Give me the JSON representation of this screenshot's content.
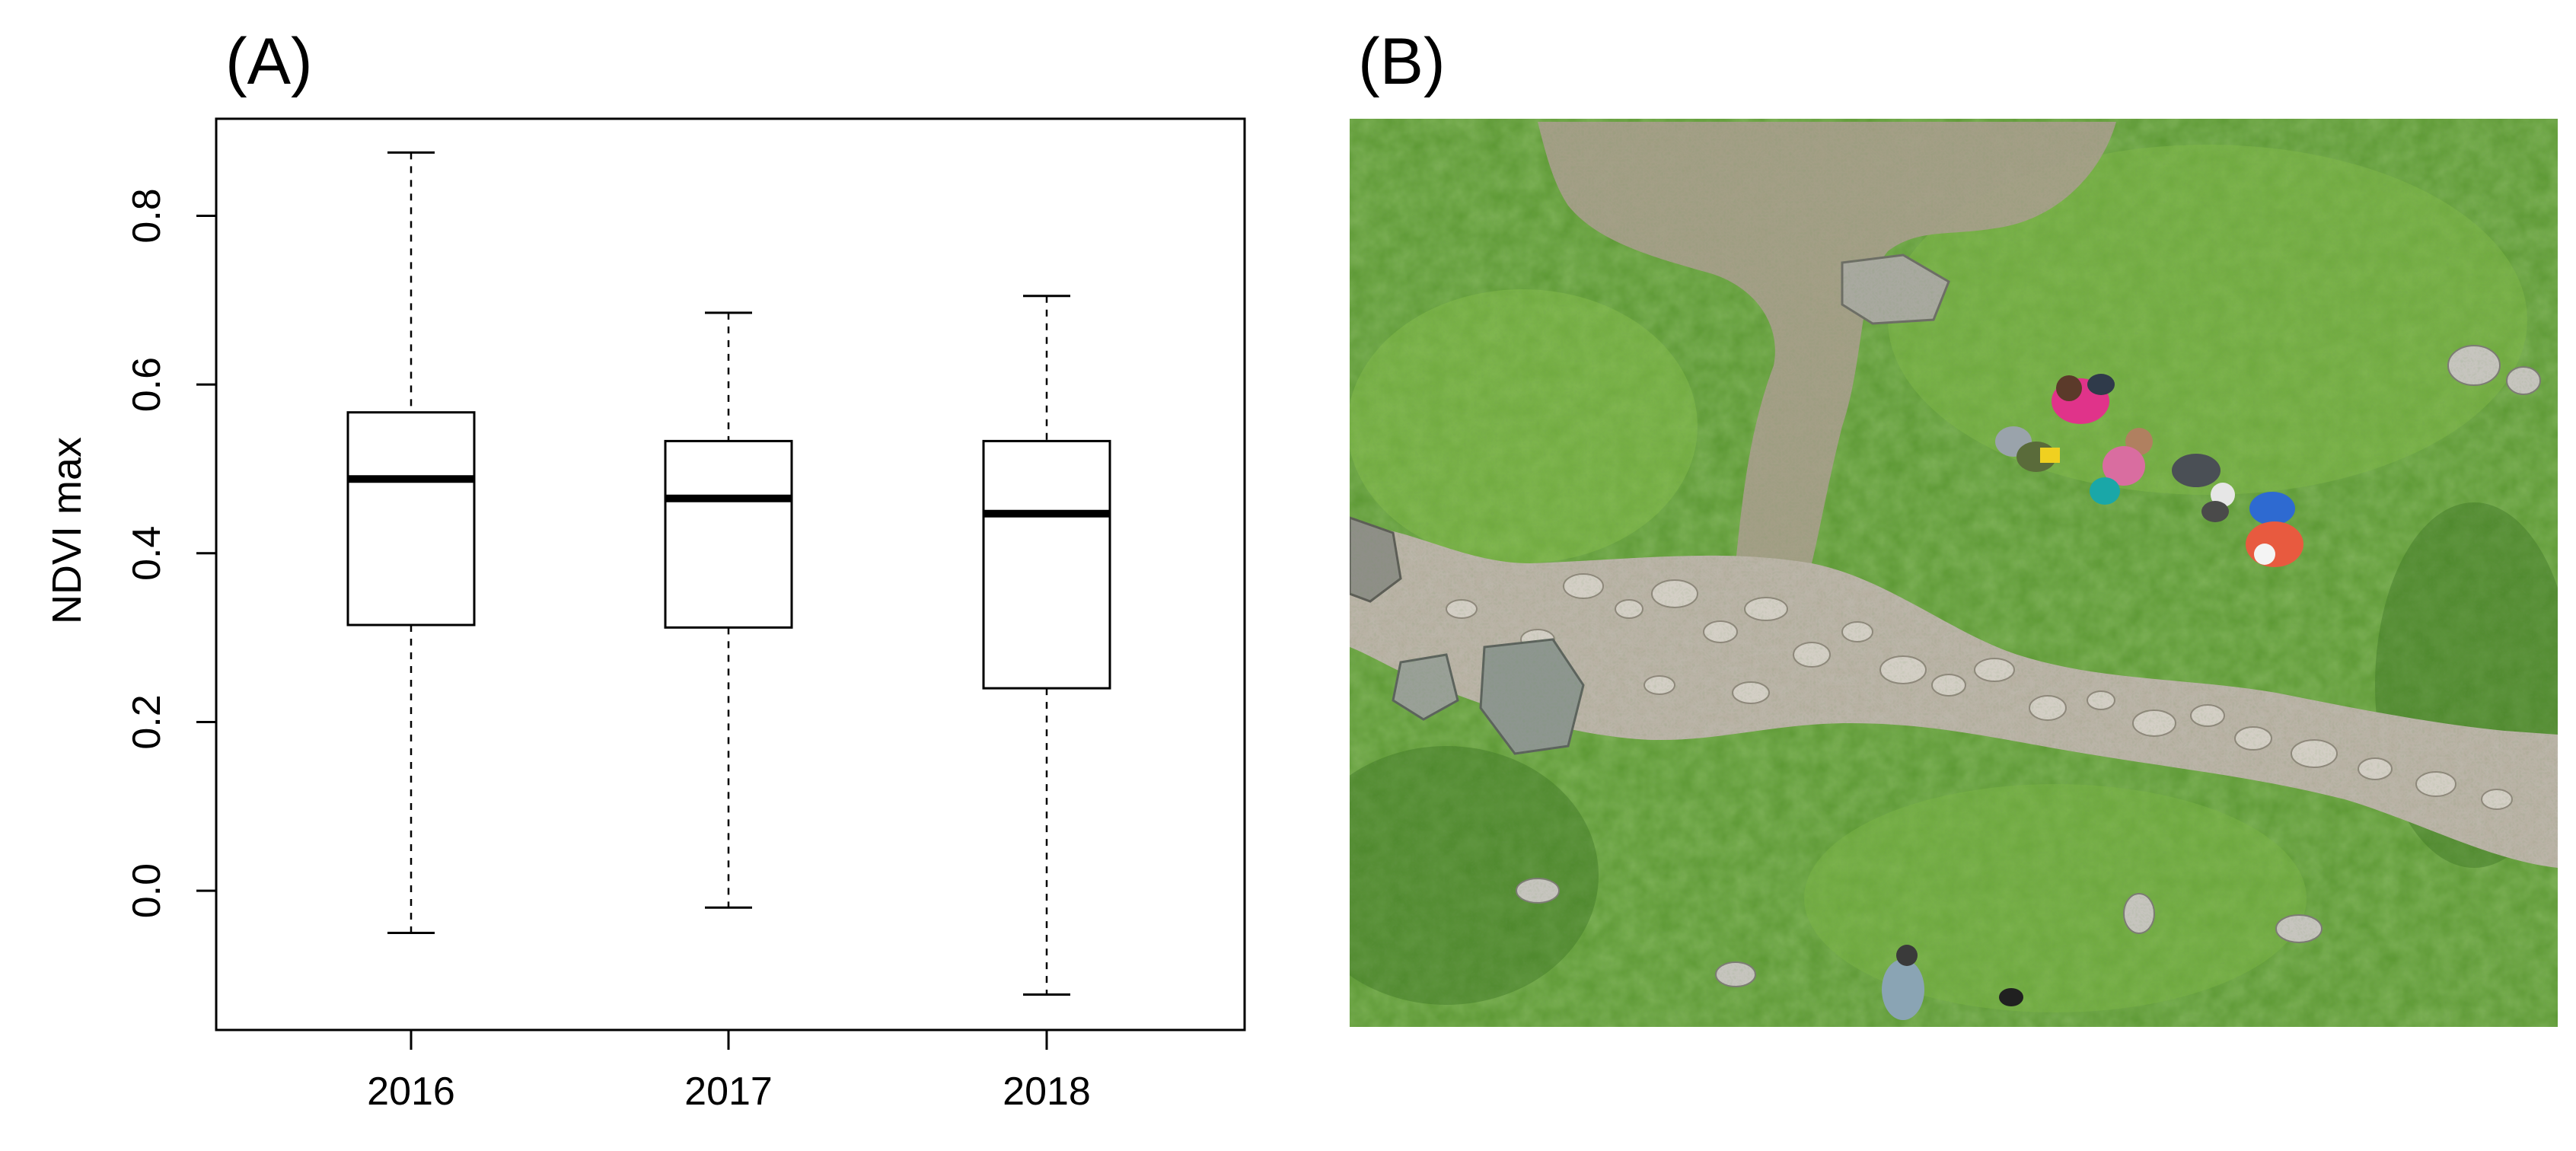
{
  "panels": {
    "a_label": "(A)",
    "b_label": "(B)"
  },
  "chart_data": {
    "type": "boxplot",
    "title": "",
    "xlabel": "",
    "ylabel": "NDVI max",
    "categories": [
      "2016",
      "2017",
      "2018"
    ],
    "boxes": [
      {
        "category": "2016",
        "min": -0.05,
        "q1": 0.315,
        "median": 0.488,
        "q3": 0.567,
        "max": 0.875
      },
      {
        "category": "2017",
        "min": -0.02,
        "q1": 0.312,
        "median": 0.465,
        "q3": 0.533,
        "max": 0.685
      },
      {
        "category": "2018",
        "min": -0.123,
        "q1": 0.24,
        "median": 0.447,
        "q3": 0.533,
        "max": 0.705
      }
    ],
    "ylim": [
      -0.165,
      0.915
    ],
    "yticks": [
      0.0,
      0.2,
      0.4,
      0.6,
      0.8
    ],
    "ytick_labels": [
      "0.0",
      "0.2",
      "0.4",
      "0.6",
      "0.8"
    ],
    "grid": false,
    "colors": {
      "box_fill": "#ffffff",
      "stroke": "#000000"
    }
  },
  "photo": {
    "type": "aerial-drone-photo",
    "scene": "alpine-grassland-with-rocky-path-and-people",
    "colors": {
      "grass": "#5e9a35",
      "grass_light": "#82bd4a",
      "grass_dark": "#3f7626",
      "soil": "#a89e8c",
      "rock": "#c9c3b8",
      "jacket_pink": "#e0338a",
      "jacket_red": "#e85a3f",
      "backpack_blue": "#2e6ad1",
      "backpack_teal": "#1aa7a8",
      "helmet_yellow": "#f0d020"
    }
  }
}
